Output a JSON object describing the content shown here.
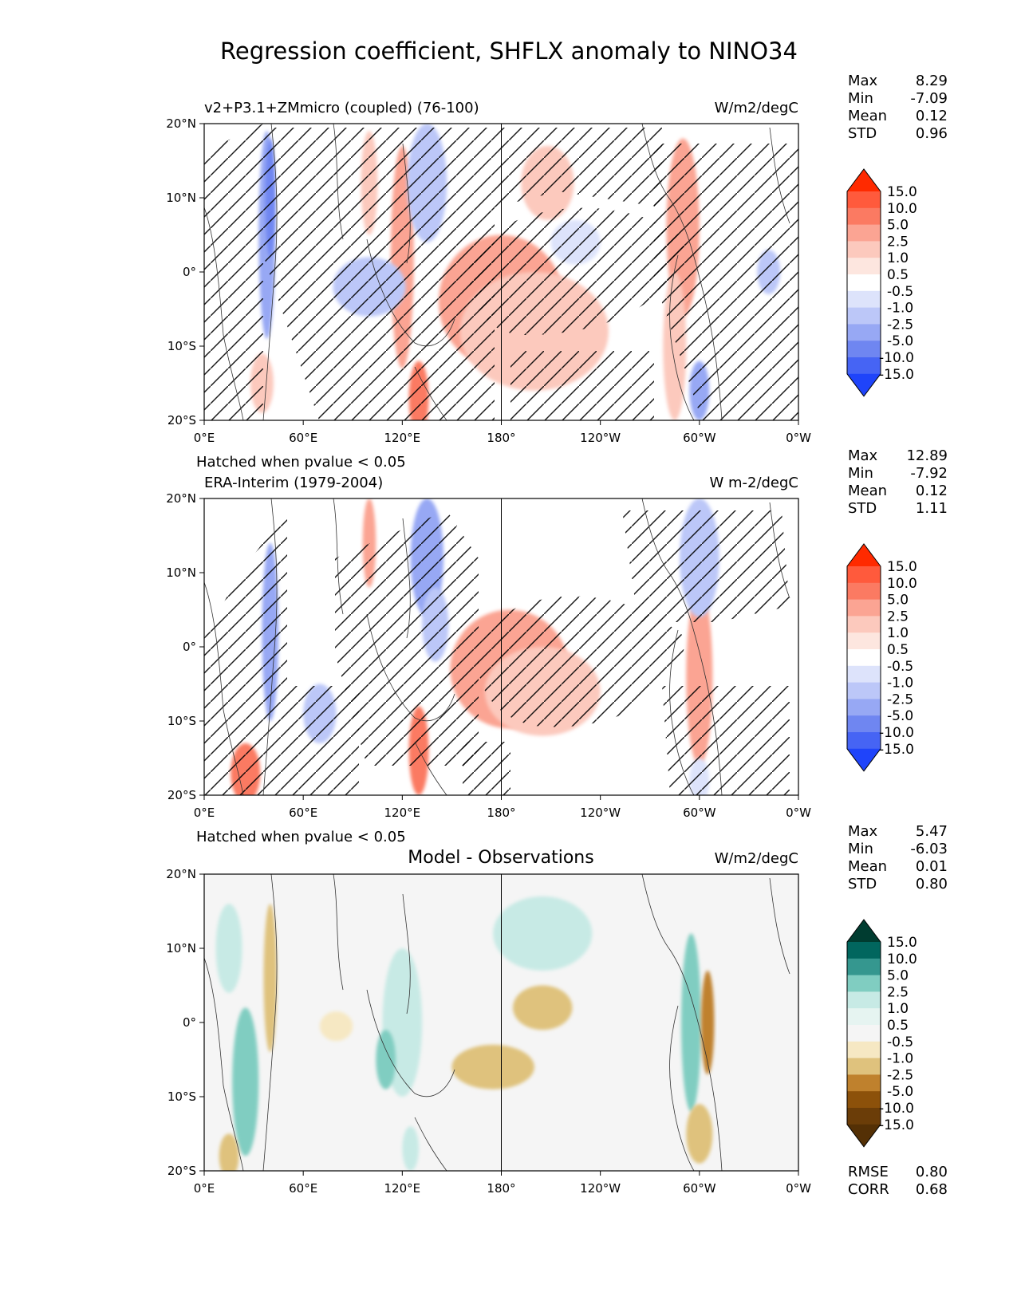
{
  "title": "Regression coefficient, SHFLX anomaly to NINO34",
  "colorbar_levels": [
    "15.0",
    "10.0",
    "5.0",
    "2.5",
    "1.0",
    "0.5",
    "-0.5",
    "-1.0",
    "-2.5",
    "-5.0",
    "-10.0",
    "-15.0"
  ],
  "colors": {
    "diverging": [
      "#ff2a00",
      "#ff5a3c",
      "#fb7a62",
      "#fba493",
      "#fcc9bd",
      "#fde6df",
      "#ffffff",
      "#dde3fb",
      "#bcc7f8",
      "#97a8f4",
      "#6f86f1",
      "#4664f4",
      "#1f44fa"
    ],
    "brbg": [
      "#003c30",
      "#01665e",
      "#35978f",
      "#80cdc1",
      "#c7eae5",
      "#e6f4f1",
      "#f5f5f5",
      "#f6e8c3",
      "#dfc27d",
      "#bf812d",
      "#8c510a",
      "#6b3d08",
      "#543005"
    ]
  },
  "chart_data": [
    {
      "type": "heatmap",
      "name": "model",
      "left_title": "v2+P3.1+ZMmicro (coupled) (76-100)",
      "units": "W/m2/degC",
      "xticks": [
        "0°E",
        "60°E",
        "120°E",
        "180°",
        "120°W",
        "60°W",
        "0°W"
      ],
      "yticks": [
        "20°N",
        "10°N",
        "0°",
        "10°S",
        "20°S"
      ],
      "xlim": [
        0,
        360
      ],
      "ylim": [
        -20,
        20
      ],
      "footnote": "Hatched when pvalue < 0.05",
      "stats": [
        {
          "label": "Max",
          "value": "8.29"
        },
        {
          "label": "Min",
          "value": "-7.09"
        },
        {
          "label": "Mean",
          "value": "0.12"
        },
        {
          "label": "STD",
          "value": "0.96"
        }
      ],
      "features": [
        {
          "lon": 180,
          "lat": -4,
          "rx": 38,
          "ry": 9,
          "level": 2.5
        },
        {
          "lon": 200,
          "lat": -8,
          "rx": 45,
          "ry": 8,
          "level": 1.0
        },
        {
          "lon": 208,
          "lat": 12,
          "rx": 16,
          "ry": 5,
          "level": 1.0
        },
        {
          "lon": 290,
          "lat": 6,
          "rx": 10,
          "ry": 12,
          "level": 2.5
        },
        {
          "lon": 285,
          "lat": -10,
          "rx": 7,
          "ry": 10,
          "level": 1.0
        },
        {
          "lon": 120,
          "lat": 2,
          "rx": 7,
          "ry": 15,
          "level": 2.5
        },
        {
          "lon": 130,
          "lat": -17,
          "rx": 6,
          "ry": 5,
          "level": 5.0
        },
        {
          "lon": 100,
          "lat": 12,
          "rx": 5,
          "ry": 7,
          "level": 1.0
        },
        {
          "lon": 35,
          "lat": -15,
          "rx": 7,
          "ry": 4,
          "level": 1.0
        },
        {
          "lon": 38,
          "lat": 5,
          "rx": 5,
          "ry": 14,
          "level": -2.5
        },
        {
          "lon": 40,
          "lat": 10,
          "rx": 3,
          "ry": 8,
          "level": -5.0
        },
        {
          "lon": 135,
          "lat": 12,
          "rx": 12,
          "ry": 8,
          "level": -1.0
        },
        {
          "lon": 100,
          "lat": -2,
          "rx": 22,
          "ry": 4,
          "level": -1.0
        },
        {
          "lon": 300,
          "lat": -16,
          "rx": 6,
          "ry": 4,
          "level": -2.5
        },
        {
          "lon": 342,
          "lat": 0,
          "rx": 7,
          "ry": 3,
          "level": -1.0
        },
        {
          "lon": 225,
          "lat": 4,
          "rx": 15,
          "ry": 3,
          "level": -0.5
        }
      ]
    },
    {
      "type": "heatmap",
      "name": "observations",
      "left_title": "ERA-Interim (1979-2004)",
      "units": "W m-2/degC",
      "xticks": [
        "0°E",
        "60°E",
        "120°E",
        "180°",
        "120°W",
        "60°W",
        "0°W"
      ],
      "yticks": [
        "20°N",
        "10°N",
        "0°",
        "10°S",
        "20°S"
      ],
      "xlim": [
        0,
        360
      ],
      "ylim": [
        -20,
        20
      ],
      "footnote": "Hatched when pvalue < 0.05",
      "stats": [
        {
          "label": "Max",
          "value": "12.89"
        },
        {
          "label": "Min",
          "value": "-7.92"
        },
        {
          "label": "Mean",
          "value": "0.12"
        },
        {
          "label": "STD",
          "value": "1.11"
        }
      ],
      "features": [
        {
          "lon": 185,
          "lat": -3,
          "rx": 36,
          "ry": 8,
          "level": 2.5
        },
        {
          "lon": 205,
          "lat": -6,
          "rx": 35,
          "ry": 6,
          "level": 1.0
        },
        {
          "lon": 300,
          "lat": -4,
          "rx": 8,
          "ry": 12,
          "level": 2.5
        },
        {
          "lon": 25,
          "lat": -17,
          "rx": 9,
          "ry": 4,
          "level": 5.0
        },
        {
          "lon": 130,
          "lat": -14,
          "rx": 6,
          "ry": 6,
          "level": 5.0
        },
        {
          "lon": 100,
          "lat": 14,
          "rx": 4,
          "ry": 6,
          "level": 2.5
        },
        {
          "lon": 40,
          "lat": 2,
          "rx": 5,
          "ry": 12,
          "level": -2.5
        },
        {
          "lon": 135,
          "lat": 12,
          "rx": 10,
          "ry": 8,
          "level": -2.5
        },
        {
          "lon": 140,
          "lat": 3,
          "rx": 8,
          "ry": 5,
          "level": -1.0
        },
        {
          "lon": 300,
          "lat": 12,
          "rx": 12,
          "ry": 8,
          "level": -1.0
        },
        {
          "lon": 70,
          "lat": -9,
          "rx": 10,
          "ry": 4,
          "level": -1.0
        },
        {
          "lon": 300,
          "lat": -18,
          "rx": 6,
          "ry": 3,
          "level": -0.5
        }
      ]
    },
    {
      "type": "heatmap",
      "name": "difference",
      "center_title": "Model - Observations",
      "units": "W/m2/degC",
      "xticks": [
        "0°E",
        "60°E",
        "120°E",
        "180°",
        "120°W",
        "60°W",
        "0°W"
      ],
      "yticks": [
        "20°N",
        "10°N",
        "0°",
        "10°S",
        "20°S"
      ],
      "xlim": [
        0,
        360
      ],
      "ylim": [
        -20,
        20
      ],
      "stats": [
        {
          "label": "Max",
          "value": "5.47"
        },
        {
          "label": "Min",
          "value": "-6.03"
        },
        {
          "label": "Mean",
          "value": "0.01"
        },
        {
          "label": "STD",
          "value": "0.80"
        }
      ],
      "bottom_stats": [
        {
          "label": "RMSE",
          "value": "0.80"
        },
        {
          "label": "CORR",
          "value": "0.68"
        }
      ],
      "features": [
        {
          "lon": 15,
          "lat": 10,
          "rx": 8,
          "ry": 6,
          "level": 1.0
        },
        {
          "lon": 25,
          "lat": -8,
          "rx": 8,
          "ry": 10,
          "level": 2.5
        },
        {
          "lon": 40,
          "lat": 6,
          "rx": 4,
          "ry": 10,
          "level": -1.0
        },
        {
          "lon": 15,
          "lat": -18,
          "rx": 6,
          "ry": 3,
          "level": -1.0
        },
        {
          "lon": 120,
          "lat": 0,
          "rx": 12,
          "ry": 10,
          "level": 1.0
        },
        {
          "lon": 110,
          "lat": -5,
          "rx": 6,
          "ry": 4,
          "level": 2.5
        },
        {
          "lon": 175,
          "lat": -6,
          "rx": 25,
          "ry": 3,
          "level": -1.0
        },
        {
          "lon": 205,
          "lat": 2,
          "rx": 18,
          "ry": 3,
          "level": -1.0
        },
        {
          "lon": 205,
          "lat": 12,
          "rx": 30,
          "ry": 5,
          "level": 1.0
        },
        {
          "lon": 295,
          "lat": 0,
          "rx": 6,
          "ry": 12,
          "level": 2.5
        },
        {
          "lon": 305,
          "lat": 0,
          "rx": 4,
          "ry": 7,
          "level": -2.5
        },
        {
          "lon": 300,
          "lat": -15,
          "rx": 8,
          "ry": 4,
          "level": -1.0
        },
        {
          "lon": 80,
          "lat": -0.5,
          "rx": 10,
          "ry": 2,
          "level": -0.5
        },
        {
          "lon": 125,
          "lat": -17,
          "rx": 5,
          "ry": 3,
          "level": 1.0
        }
      ]
    }
  ]
}
